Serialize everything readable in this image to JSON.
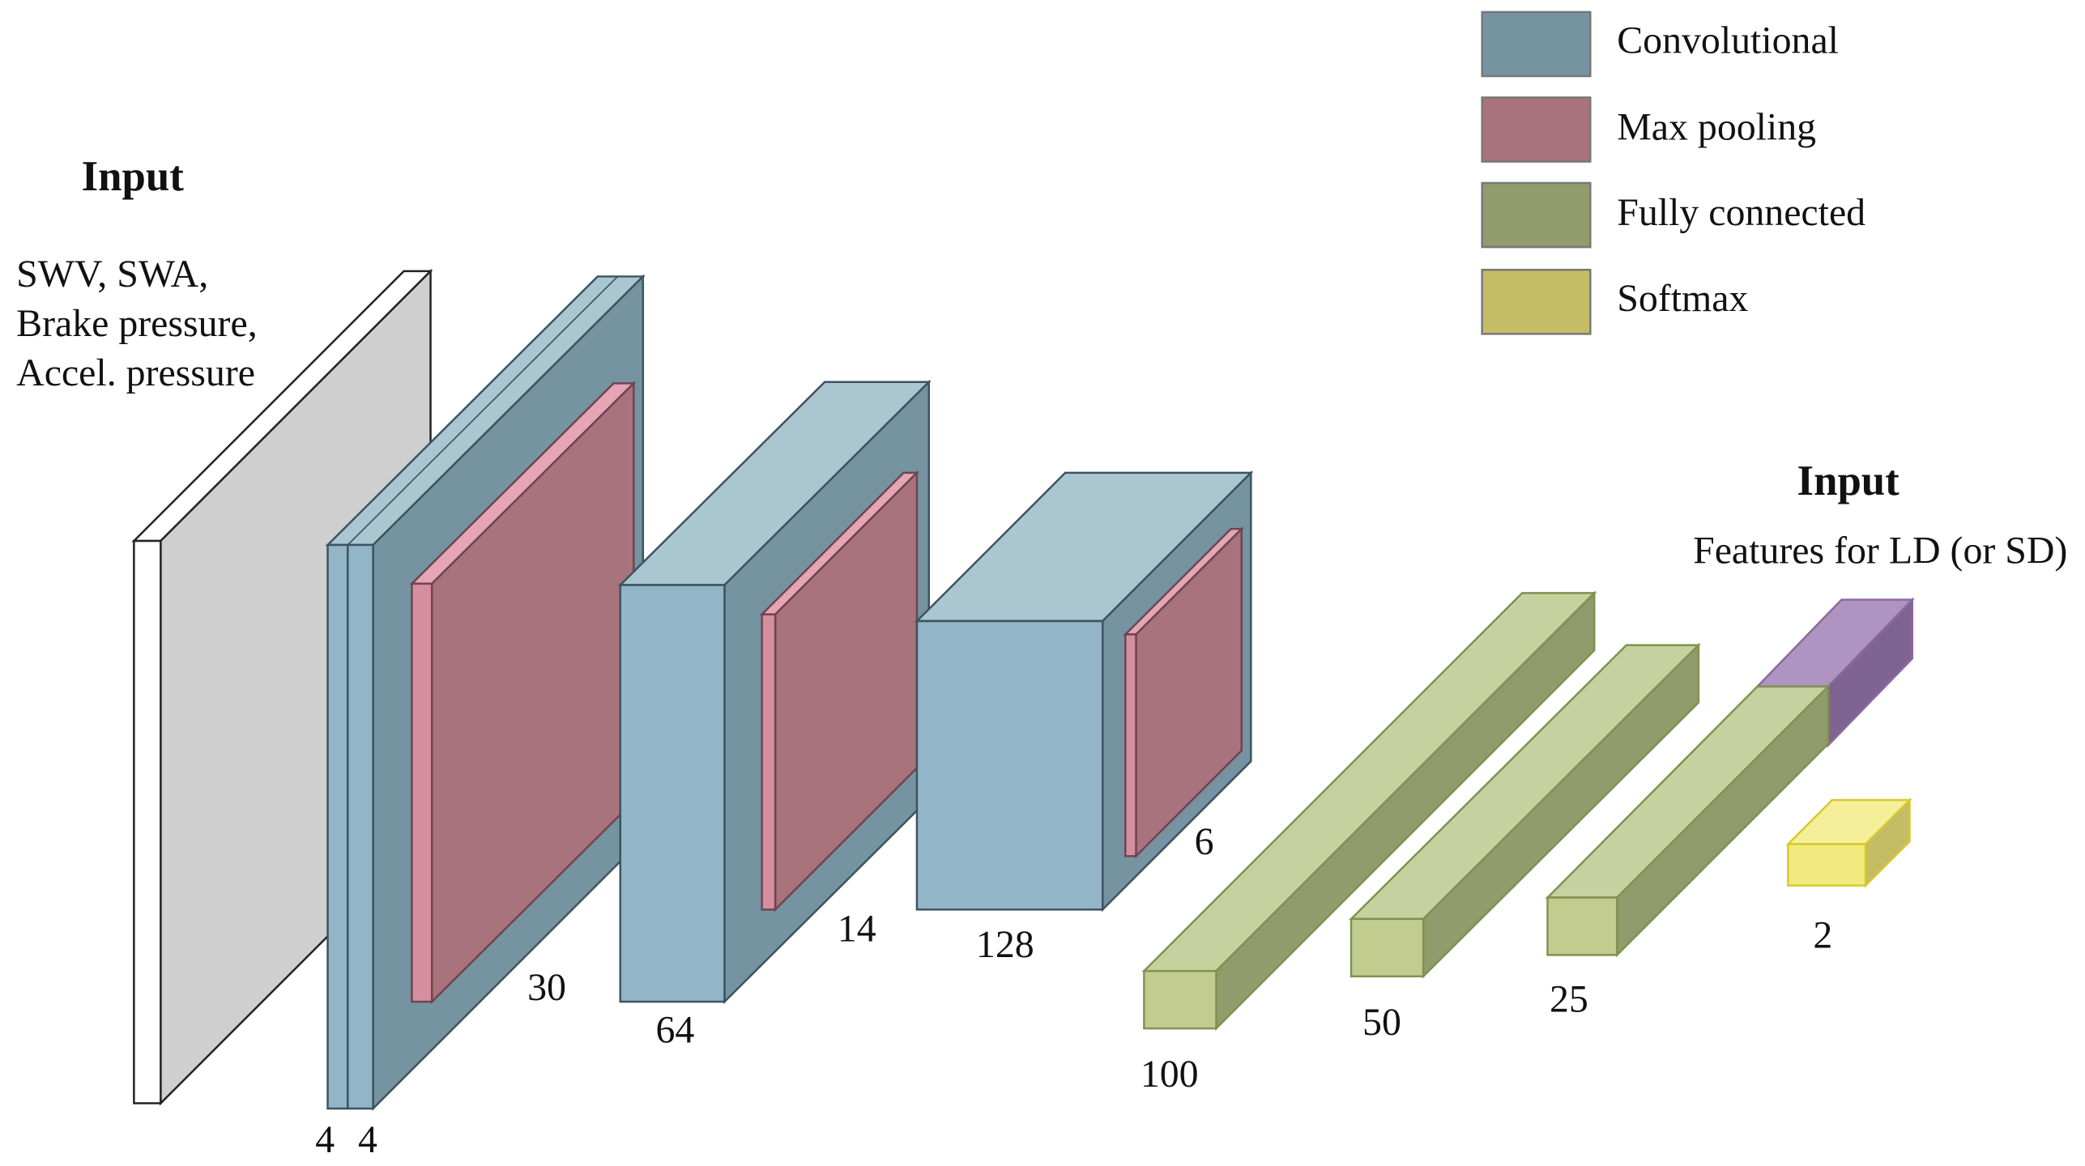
{
  "legend": [
    {
      "label": "Convolutional"
    },
    {
      "label": "Max pooling"
    },
    {
      "label": "Fully connected"
    },
    {
      "label": "Softmax"
    }
  ],
  "input_left": {
    "title": "Input",
    "lines": [
      "SWV, SWA,",
      "Brake pressure,",
      "Accel. pressure"
    ]
  },
  "input_right": {
    "title": "Input",
    "text": "Features for LD (or SD)"
  },
  "dimensions": [
    4,
    4,
    30,
    64,
    14,
    128,
    6,
    100,
    50,
    25,
    2
  ]
}
